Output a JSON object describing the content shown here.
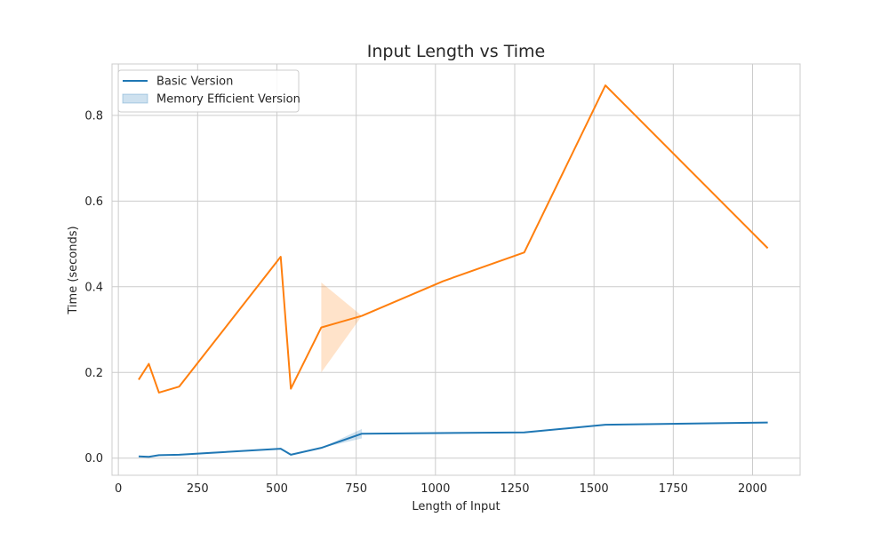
{
  "chart_data": {
    "type": "line",
    "title": "Input Length vs Time",
    "xlabel": "Length of Input",
    "ylabel": "Time (seconds)",
    "xlim": [
      -20,
      2150
    ],
    "ylim": [
      -0.04,
      0.92
    ],
    "xticks": [
      0,
      250,
      500,
      750,
      1000,
      1250,
      1500,
      1750,
      2000
    ],
    "yticks": [
      0.0,
      0.2,
      0.4,
      0.6,
      0.8
    ],
    "grid": true,
    "legend": {
      "placement": "top-left",
      "entries": [
        {
          "label": "Basic Version",
          "kind": "line",
          "color": "#1f77b4"
        },
        {
          "label": "Memory Efficient Version",
          "kind": "band",
          "color": "#1f77b4"
        }
      ]
    },
    "series": [
      {
        "color": "#1f77b4",
        "x": [
          64,
          96,
          128,
          192,
          512,
          544,
          640,
          768,
          1280,
          1536,
          2048
        ],
        "y": [
          0.004,
          0.003,
          0.007,
          0.008,
          0.022,
          0.008,
          0.024,
          0.057,
          0.06,
          0.078,
          0.083
        ],
        "band": [
          {
            "x": 640,
            "low": 0.024,
            "high": 0.024
          },
          {
            "x": 768,
            "low": 0.046,
            "high": 0.068
          }
        ]
      },
      {
        "color": "#ff7f0e",
        "x": [
          64,
          96,
          128,
          192,
          512,
          544,
          640,
          768,
          1024,
          1280,
          1536,
          2048
        ],
        "y": [
          0.183,
          0.22,
          0.153,
          0.167,
          0.47,
          0.162,
          0.305,
          0.332,
          0.413,
          0.48,
          0.87,
          0.49
        ],
        "band": [
          {
            "x": 640,
            "low": 0.2,
            "high": 0.41
          },
          {
            "x": 768,
            "low": 0.332,
            "high": 0.332
          }
        ]
      }
    ]
  }
}
